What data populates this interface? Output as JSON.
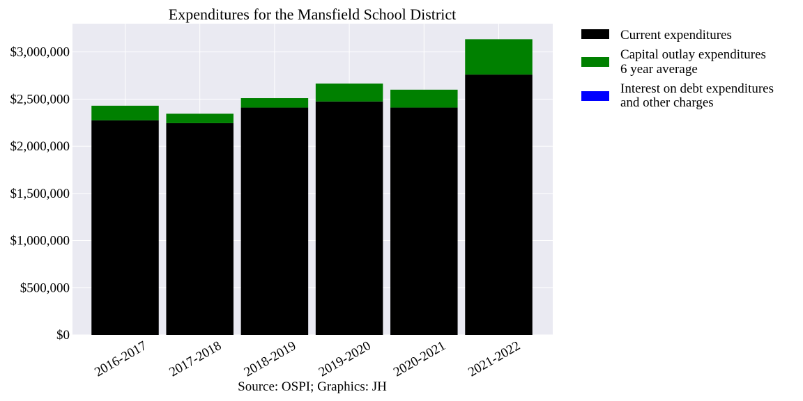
{
  "chart_data": {
    "type": "bar",
    "stacked": true,
    "title": "Expenditures for the Mansfield School District",
    "xlabel": "",
    "ylabel": "",
    "categories": [
      "2016-2017",
      "2017-2018",
      "2018-2019",
      "2019-2020",
      "2020-2021",
      "2021-2022"
    ],
    "ylim": [
      0,
      3300000
    ],
    "yticks": [
      0,
      500000,
      1000000,
      1500000,
      2000000,
      2500000,
      3000000
    ],
    "ytick_labels": [
      "$0",
      "$500,000",
      "$1,000,000",
      "$1,500,000",
      "$2,000,000",
      "$2,500,000",
      "$3,000,000"
    ],
    "grid": true,
    "legend_position": "outside-right",
    "series": [
      {
        "name": "Current expenditures",
        "color": "#000000",
        "values": [
          2275000,
          2245000,
          2410000,
          2475000,
          2410000,
          2760000
        ]
      },
      {
        "name": "Capital outlay expenditures",
        "color": "#008000",
        "values": [
          155000,
          100000,
          100000,
          190000,
          190000,
          375000
        ]
      },
      {
        "name": "Interest on debt expenditures",
        "color": "#0000ff",
        "values": [
          0,
          0,
          0,
          0,
          0,
          0
        ]
      }
    ],
    "legend": [
      {
        "lines": [
          "Current expenditures"
        ],
        "color": "#000000"
      },
      {
        "lines": [
          "Capital outlay expenditures",
          "6 year average"
        ],
        "color": "#008000"
      },
      {
        "lines": [
          "Interest on debt expenditures",
          "and other charges"
        ],
        "color": "#0000ff"
      }
    ],
    "caption": "Source: OSPI; Graphics: JH",
    "plot_background": "#eaeaf2"
  }
}
